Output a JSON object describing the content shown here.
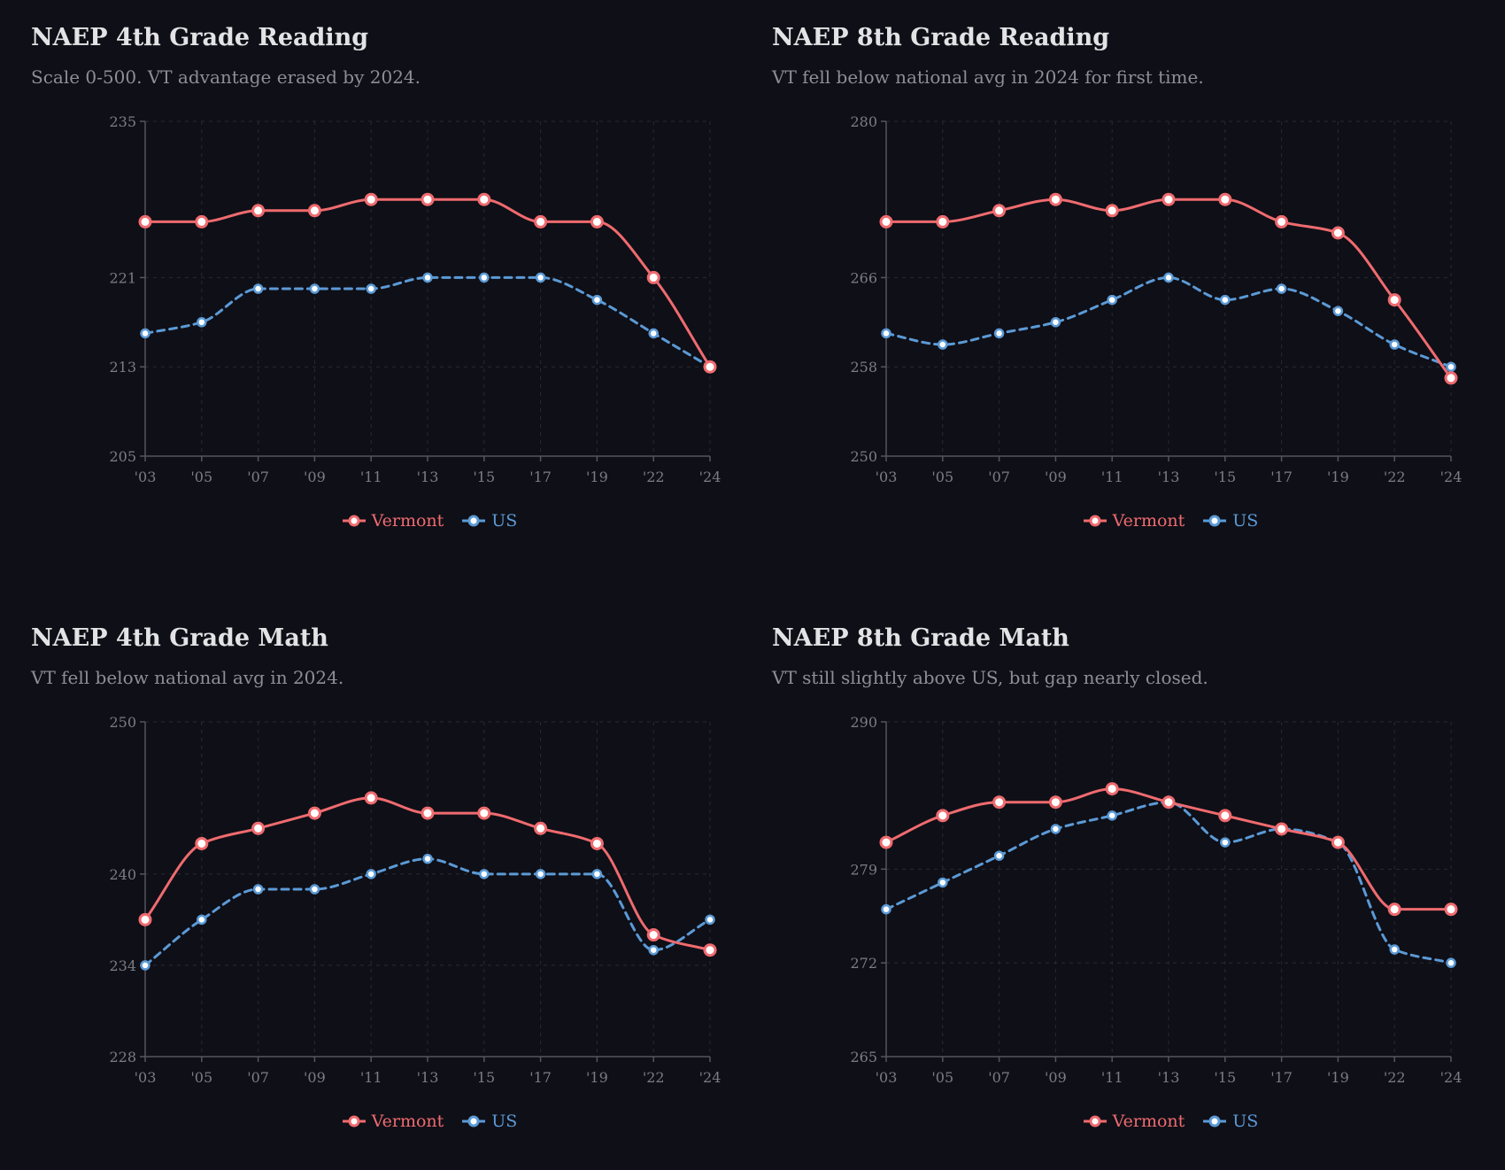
{
  "colors": {
    "background": "#0f0f17",
    "vermont": "#ef6b6f",
    "us": "#5b9ad6",
    "marker_fill": "#ffffff",
    "axis": "#55555d",
    "grid": "#2a2a33",
    "tick_text": "#7c7c84",
    "title": "#e3e3e6",
    "subtitle": "#8e8e96"
  },
  "chart_data": [
    {
      "id": "reading4",
      "type": "line",
      "title": "NAEP 4th Grade Reading",
      "subtitle": "Scale 0-500. VT advantage erased by 2024.",
      "categories": [
        "'03",
        "'05",
        "'07",
        "'09",
        "'11",
        "'13",
        "'15",
        "'17",
        "'19",
        "'22",
        "'24"
      ],
      "ylim": [
        205,
        235
      ],
      "yticks": [
        205,
        213,
        221,
        235
      ],
      "grid": true,
      "legend_position": "bottom-center",
      "series": [
        {
          "name": "Vermont",
          "style": "solid",
          "values": [
            226,
            226,
            227,
            227,
            228,
            228,
            228,
            226,
            226,
            221,
            213
          ]
        },
        {
          "name": "US",
          "style": "dashed",
          "values": [
            216,
            217,
            220,
            220,
            220,
            221,
            221,
            221,
            219,
            216,
            213
          ]
        }
      ]
    },
    {
      "id": "reading8",
      "type": "line",
      "title": "NAEP 8th Grade Reading",
      "subtitle": "VT fell below national avg in 2024 for first time.",
      "categories": [
        "'03",
        "'05",
        "'07",
        "'09",
        "'11",
        "'13",
        "'15",
        "'17",
        "'19",
        "'22",
        "'24"
      ],
      "ylim": [
        250,
        280
      ],
      "yticks": [
        250,
        258,
        266,
        280
      ],
      "grid": true,
      "legend_position": "bottom-center",
      "series": [
        {
          "name": "Vermont",
          "style": "solid",
          "values": [
            271,
            271,
            272,
            273,
            272,
            273,
            273,
            271,
            270,
            264,
            257
          ]
        },
        {
          "name": "US",
          "style": "dashed",
          "values": [
            261,
            260,
            261,
            262,
            264,
            266,
            264,
            265,
            263,
            260,
            258
          ]
        }
      ]
    },
    {
      "id": "math4",
      "type": "line",
      "title": "NAEP 4th Grade Math",
      "subtitle": "VT fell below national avg in 2024.",
      "categories": [
        "'03",
        "'05",
        "'07",
        "'09",
        "'11",
        "'13",
        "'15",
        "'17",
        "'19",
        "'22",
        "'24"
      ],
      "ylim": [
        228,
        250
      ],
      "yticks": [
        228,
        234,
        240,
        250
      ],
      "grid": true,
      "legend_position": "bottom-center",
      "series": [
        {
          "name": "Vermont",
          "style": "solid",
          "values": [
            237,
            242,
            243,
            244,
            245,
            244,
            244,
            243,
            242,
            236,
            235
          ]
        },
        {
          "name": "US",
          "style": "dashed",
          "values": [
            234,
            237,
            239,
            239,
            240,
            241,
            240,
            240,
            240,
            235,
            237
          ]
        }
      ]
    },
    {
      "id": "math8",
      "type": "line",
      "title": "NAEP 8th Grade Math",
      "subtitle": "VT still slightly above US, but gap nearly closed.",
      "categories": [
        "'03",
        "'05",
        "'07",
        "'09",
        "'11",
        "'13",
        "'15",
        "'17",
        "'19",
        "'22",
        "'24"
      ],
      "ylim": [
        265,
        290
      ],
      "yticks": [
        265,
        272,
        279,
        290
      ],
      "grid": true,
      "legend_position": "bottom-center",
      "series": [
        {
          "name": "Vermont",
          "style": "solid",
          "values": [
            281,
            283,
            284,
            284,
            285,
            284,
            283,
            282,
            281,
            276,
            276
          ]
        },
        {
          "name": "US",
          "style": "dashed",
          "values": [
            276,
            278,
            280,
            282,
            283,
            284,
            281,
            282,
            281,
            273,
            272
          ]
        }
      ]
    }
  ]
}
